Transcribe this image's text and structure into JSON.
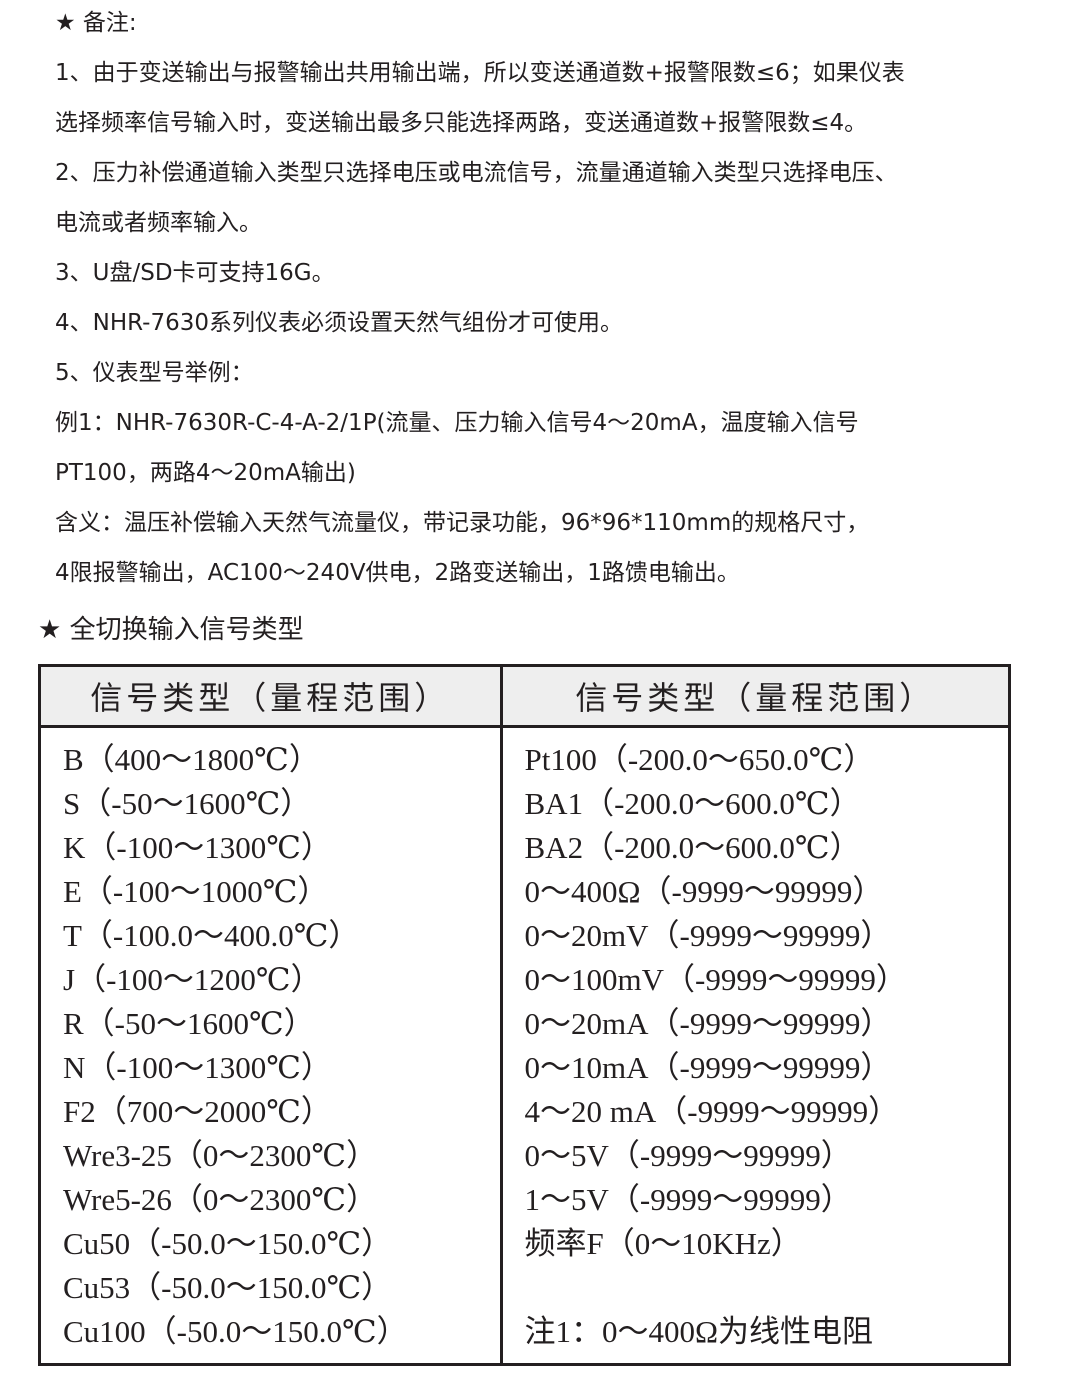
{
  "notes": {
    "heading": "★ 备注:",
    "lines": [
      "1、由于变送输出与报警输出共用输出端，所以变送通道数+报警限数≤6；如果仪表",
      "选择频率信号输入时，变送输出最多只能选择两路，变送通道数+报警限数≤4。",
      "2、压力补偿通道输入类型只选择电压或电流信号，流量通道输入类型只选择电压、",
      "电流或者频率输入。",
      "3、U盘/SD卡可支持16G。",
      "4、NHR-7630系列仪表必须设置天然气组份才可使用。",
      "5、仪表型号举例：",
      "例1：NHR-7630R-C-4-A-2/1P(流量、压力输入信号4～20mA，温度输入信号",
      "PT100，两路4～20mA输出)",
      "含义：温压补偿输入天然气流量仪，带记录功能，96*96*110mm的规格尺寸，",
      "4限报警输出，AC100～240V供电，2路变送输出，1路馈电输出。"
    ]
  },
  "signal_table": {
    "title": "★ 全切换输入信号类型",
    "headers": [
      "信号类型（量程范围）",
      "信号类型（量程范围）"
    ],
    "left": [
      "B（400～1800℃）",
      "S（-50～1600℃）",
      "K（-100～1300℃）",
      "E（-100～1000℃）",
      "T（-100.0～400.0℃）",
      "J（-100～1200℃）",
      "R（-50～1600℃）",
      "N（-100～1300℃）",
      "F2（700～2000℃）",
      "Wre3-25（0～2300℃）",
      "Wre5-26（0～2300℃）",
      "Cu50（-50.0～150.0℃）",
      "Cu53（-50.0～150.0℃）",
      "Cu100（-50.0～150.0℃）"
    ],
    "right": [
      "Pt100（-200.0～650.0℃）",
      "BA1（-200.0～600.0℃）",
      "BA2（-200.0～600.0℃）",
      "0～400Ω（-9999～99999）",
      "0～20mV（-9999～99999）",
      "0～100mV（-9999～99999）",
      "0～20mA（-9999～99999）",
      "0～10mA（-9999～99999）",
      "4～20 mA（-9999～99999）",
      "0～5V（-9999～99999）",
      "1～5V（-9999～99999）",
      "频率F（0～10KHz）",
      "",
      "注1：0～400Ω为线性电阻"
    ]
  }
}
